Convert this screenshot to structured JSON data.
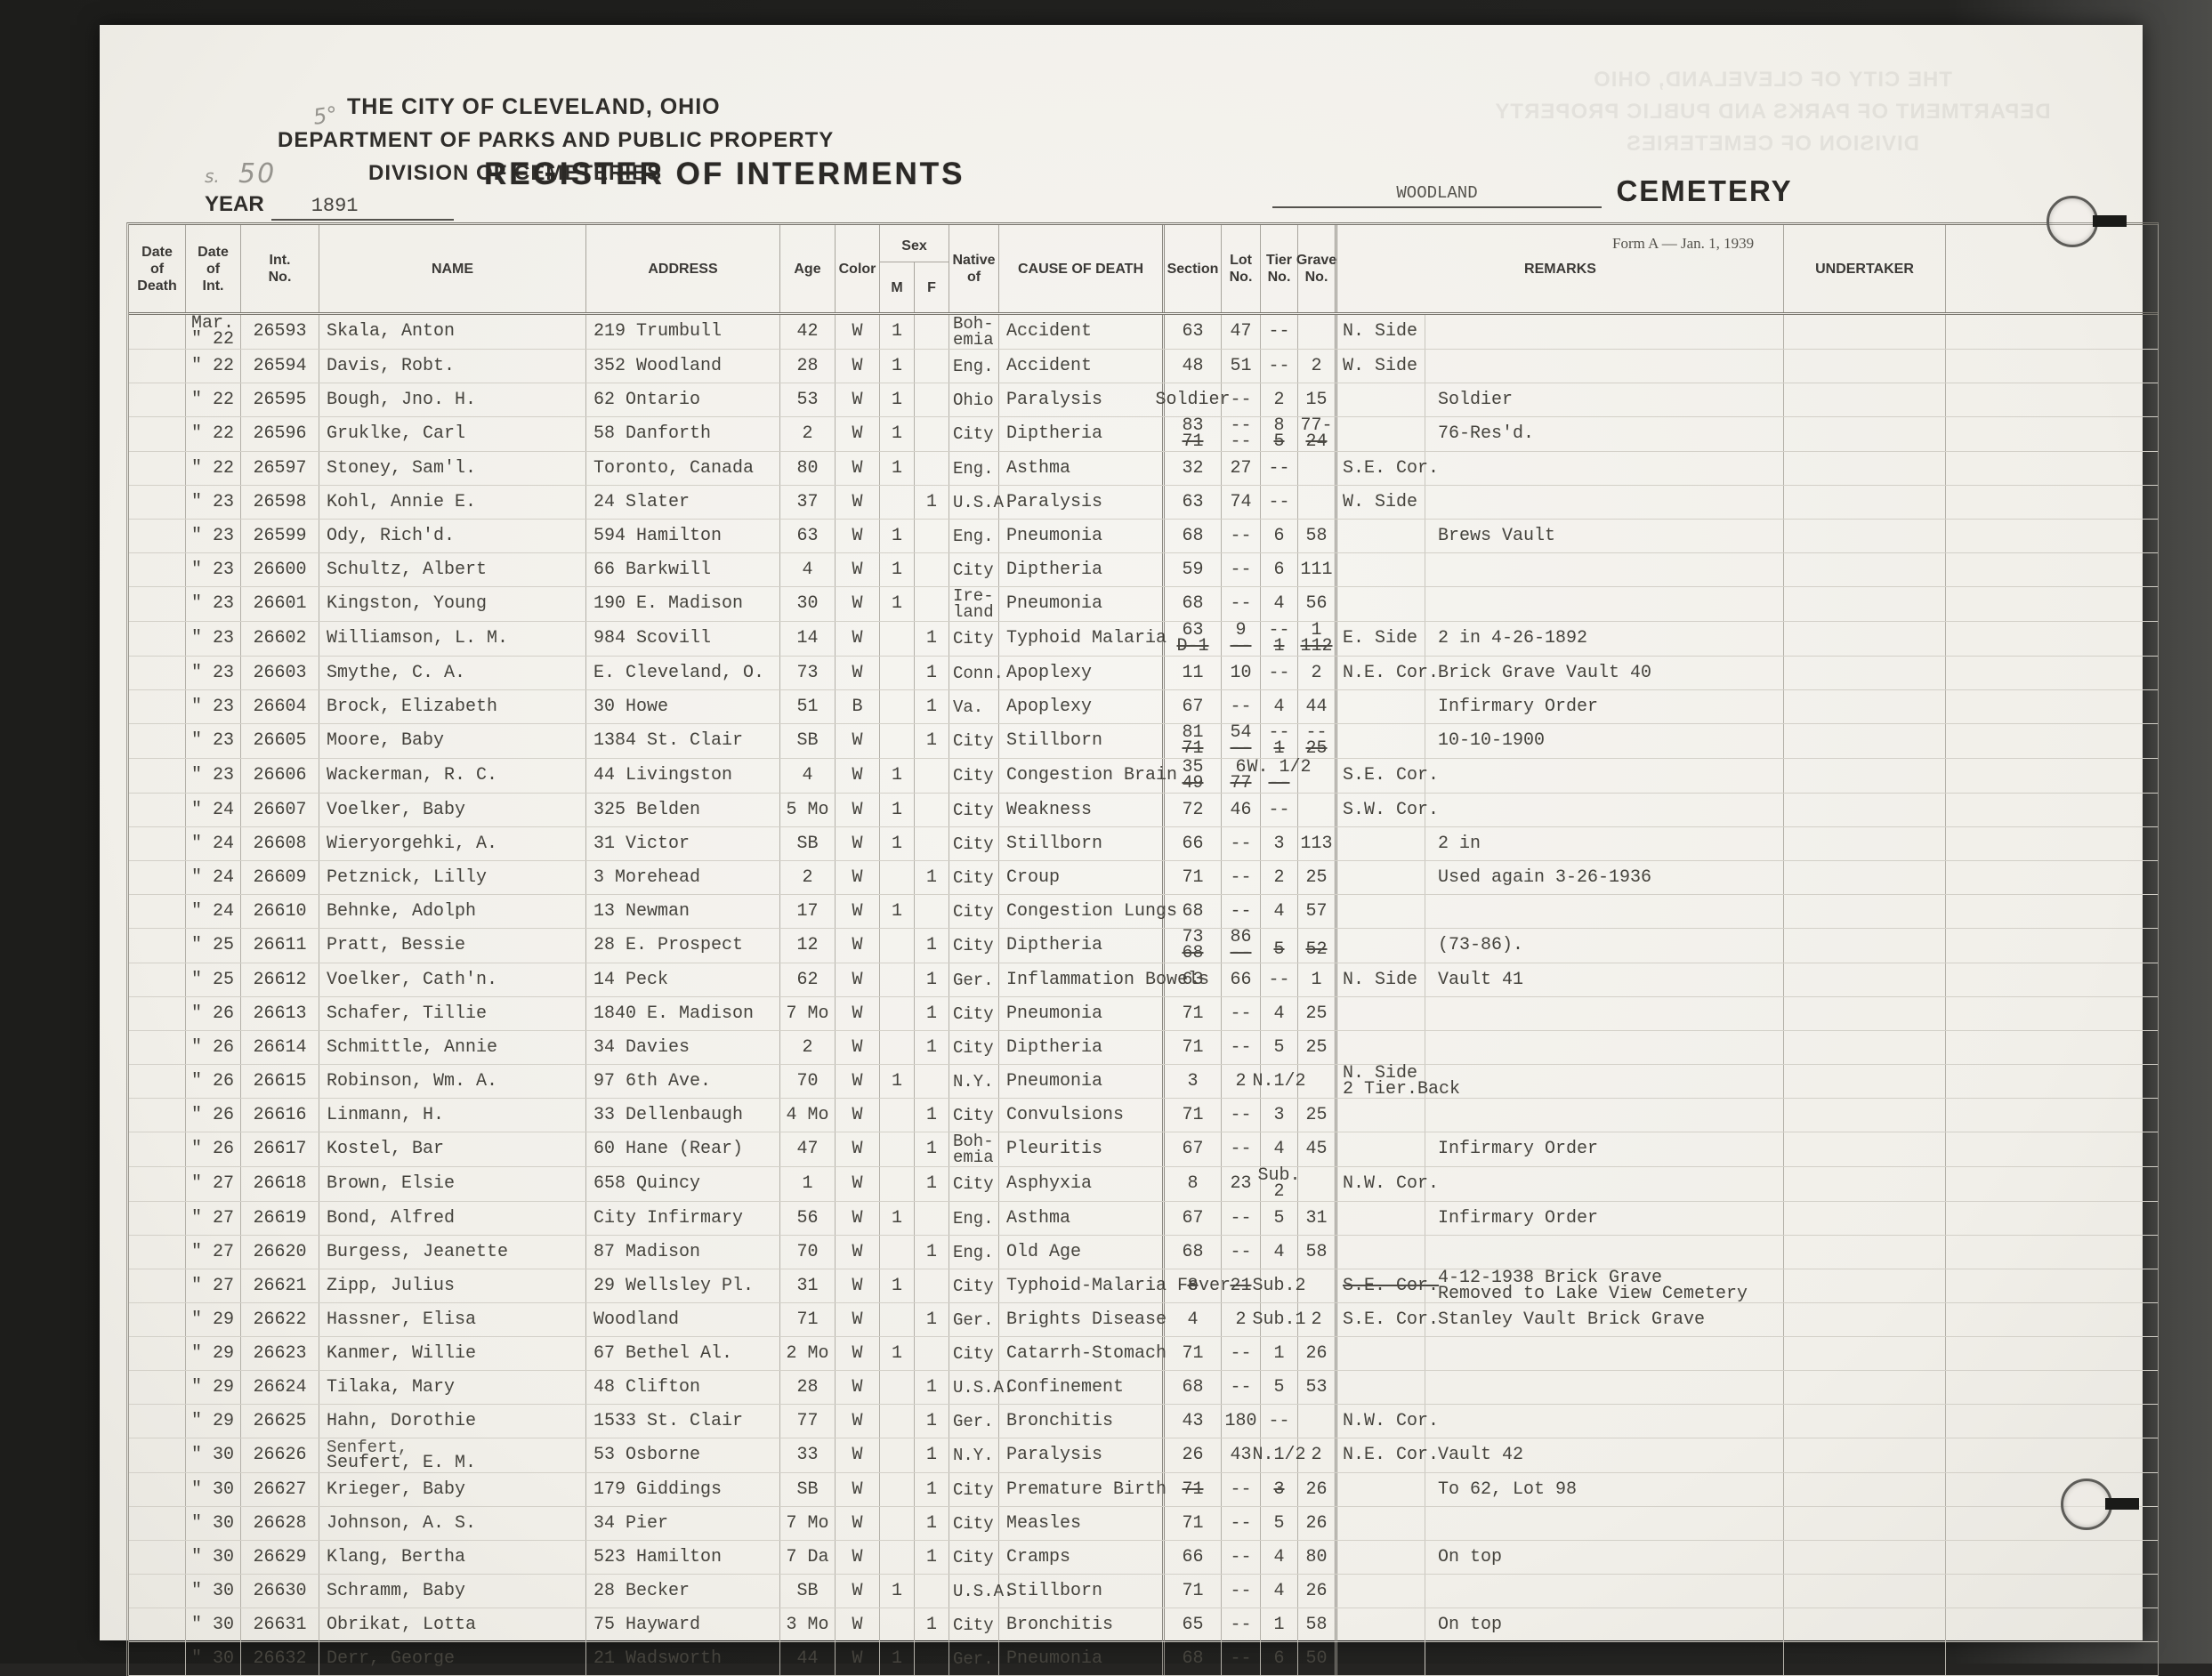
{
  "header": {
    "agency_line1": "THE CITY OF CLEVELAND, OHIO",
    "agency_line2": "DEPARTMENT OF PARKS AND PUBLIC PROPERTY",
    "agency_line3": "DIVISION OF CEMETERIES",
    "title": "REGISTER OF INTERMENTS",
    "year_label": "YEAR",
    "year_value": "1891",
    "cemetery_value": "WOODLAND",
    "cemetery_label": "CEMETERY",
    "form_note": "Form A — Jan. 1, 1939",
    "pencil_page_number": "50",
    "pencil_mark_small": "5°",
    "pencil_mark_left": "s."
  },
  "columns": {
    "date_death": [
      "Date",
      "of",
      "Death"
    ],
    "date_int": [
      "Date",
      "of",
      "Int."
    ],
    "int_no": [
      "Int.",
      "No."
    ],
    "name": "NAME",
    "address": "ADDRESS",
    "age": "Age",
    "color": "Color",
    "sex": "Sex",
    "sex_m": "M",
    "sex_f": "F",
    "native_of": [
      "Native",
      "of"
    ],
    "cause_of_death": "CAUSE OF DEATH",
    "section": "Section",
    "lot_no": [
      "Lot",
      "No."
    ],
    "tier_no": [
      "Tier",
      "No."
    ],
    "grave_no": [
      "Grave",
      "No."
    ],
    "remarks": "REMARKS",
    "undertaker": "UNDERTAKER"
  },
  "rows": [
    {
      "di": [
        "Mar.",
        "\" 22"
      ],
      "no": "26593",
      "name": "Skala, Anton",
      "addr": "219 Trumbull",
      "age": "42",
      "col": "W",
      "m": "1",
      "f": "",
      "nat": [
        "Boh-",
        "emia"
      ],
      "cause": "Accident",
      "sec": "63",
      "lot": "47",
      "tier": "--",
      "grv": "",
      "pos": "N. Side",
      "rem": ""
    },
    {
      "di": "\" 22",
      "no": "26594",
      "name": "Davis, Robt.",
      "addr": "352 Woodland",
      "age": "28",
      "col": "W",
      "m": "1",
      "f": "",
      "nat": "Eng.",
      "cause": "Accident",
      "sec": "48",
      "lot": "51",
      "tier": "--",
      "grv": "2",
      "pos": "W. Side",
      "rem": ""
    },
    {
      "di": "\" 22",
      "no": "26595",
      "name": "Bough, Jno. H.",
      "addr": "62 Ontario",
      "age": "53",
      "col": "W",
      "m": "1",
      "f": "",
      "nat": "Ohio",
      "cause": "Paralysis",
      "sec": "Soldier",
      "lot": "--",
      "tier": "2",
      "grv": "15",
      "pos": "",
      "rem": "Soldier"
    },
    {
      "di": "\" 22",
      "no": "26596",
      "name": "Gruklke, Carl",
      "addr": "58 Danforth",
      "age": "2",
      "col": "W",
      "m": "1",
      "f": "",
      "nat": "City",
      "cause": "Diptheria",
      "sec": [
        {
          "t": "83"
        },
        {
          "t": "71",
          "s": 1
        }
      ],
      "lot": [
        {
          "t": "--"
        },
        {
          "t": "--"
        }
      ],
      "tier": [
        {
          "t": "8"
        },
        {
          "t": "5",
          "s": 1
        }
      ],
      "grv": [
        {
          "t": "77-"
        },
        {
          "t": "24",
          "s": 1
        }
      ],
      "pos": "",
      "rem": "76-Res'd."
    },
    {
      "di": "\" 22",
      "no": "26597",
      "name": "Stoney, Sam'l.",
      "addr": "Toronto, Canada",
      "age": "80",
      "col": "W",
      "m": "1",
      "f": "",
      "nat": "Eng.",
      "cause": "Asthma",
      "sec": "32",
      "lot": "27",
      "tier": "--",
      "grv": "",
      "pos": "S.E. Cor.",
      "rem": ""
    },
    {
      "di": "\" 23",
      "no": "26598",
      "name": "Kohl, Annie E.",
      "addr": "24 Slater",
      "age": "37",
      "col": "W",
      "m": "",
      "f": "1",
      "nat": "U.S.A.",
      "cause": "Paralysis",
      "sec": "63",
      "lot": "74",
      "tier": "--",
      "grv": "",
      "pos": "W. Side",
      "rem": ""
    },
    {
      "di": "\" 23",
      "no": "26599",
      "name": "Ody, Rich'd.",
      "addr": "594 Hamilton",
      "age": "63",
      "col": "W",
      "m": "1",
      "f": "",
      "nat": "Eng.",
      "cause": "Pneumonia",
      "sec": "68",
      "lot": "--",
      "tier": "6",
      "grv": "58",
      "pos": "",
      "rem": "Brews Vault"
    },
    {
      "di": "\" 23",
      "no": "26600",
      "name": "Schultz, Albert",
      "addr": "66 Barkwill",
      "age": "4",
      "col": "W",
      "m": "1",
      "f": "",
      "nat": "City",
      "cause": "Diptheria",
      "sec": "59",
      "lot": "--",
      "tier": "6",
      "grv": "111",
      "pos": "",
      "rem": ""
    },
    {
      "di": "\" 23",
      "no": "26601",
      "name": "Kingston, Young",
      "addr": "190 E. Madison",
      "age": "30",
      "col": "W",
      "m": "1",
      "f": "",
      "nat": [
        "Ire-",
        "land"
      ],
      "cause": "Pneumonia",
      "sec": "68",
      "lot": "--",
      "tier": "4",
      "grv": "56",
      "pos": "",
      "rem": ""
    },
    {
      "di": "\" 23",
      "no": "26602",
      "name": "Williamson, L. M.",
      "addr": "984 Scovill",
      "age": "14",
      "col": "W",
      "m": "",
      "f": "1",
      "nat": "City",
      "cause": "Typhoid Malaria",
      "sec": [
        {
          "t": "63"
        },
        {
          "t": "D-1",
          "s": 1
        }
      ],
      "lot": [
        {
          "t": "9"
        },
        {
          "t": "--",
          "s": 1
        }
      ],
      "tier": [
        {
          "t": "--"
        },
        {
          "t": "1",
          "s": 1
        }
      ],
      "grv": [
        {
          "t": "1"
        },
        {
          "t": "112",
          "s": 1
        }
      ],
      "pos": "E. Side",
      "rem": "2 in  4-26-1892"
    },
    {
      "di": "\" 23",
      "no": "26603",
      "name": "Smythe, C. A.",
      "addr": "E. Cleveland, O.",
      "age": "73",
      "col": "W",
      "m": "",
      "f": "1",
      "nat": "Conn.",
      "cause": "Apoplexy",
      "sec": "11",
      "lot": "10",
      "tier": "--",
      "grv": "2",
      "pos": "N.E. Cor.",
      "rem": "Brick Grave  Vault 40"
    },
    {
      "di": "\" 23",
      "no": "26604",
      "name": "Brock, Elizabeth",
      "addr": "30 Howe",
      "age": "51",
      "col": "B",
      "m": "",
      "f": "1",
      "nat": "Va.",
      "cause": "Apoplexy",
      "sec": "67",
      "lot": "--",
      "tier": "4",
      "grv": "44",
      "pos": "",
      "rem": "Infirmary Order"
    },
    {
      "di": "\" 23",
      "no": "26605",
      "name": "Moore, Baby",
      "addr": "1384 St. Clair",
      "age": "SB",
      "col": "W",
      "m": "",
      "f": "1",
      "nat": "City",
      "cause": "Stillborn",
      "sec": [
        {
          "t": "81"
        },
        {
          "t": "71",
          "s": 1
        }
      ],
      "lot": [
        {
          "t": "54"
        },
        {
          "t": "--",
          "s": 1
        }
      ],
      "tier": [
        {
          "t": "--"
        },
        {
          "t": "1",
          "s": 1
        }
      ],
      "grv": [
        {
          "t": "--"
        },
        {
          "t": "25",
          "s": 1
        }
      ],
      "pos": "",
      "rem": "10-10-1900"
    },
    {
      "di": "\" 23",
      "no": "26606",
      "name": "Wackerman, R. C.",
      "addr": "44 Livingston",
      "age": "4",
      "col": "W",
      "m": "1",
      "f": "",
      "nat": "City",
      "cause": "Congestion Brain",
      "sec": [
        {
          "t": "35"
        },
        {
          "t": "49",
          "s": 1
        }
      ],
      "lot": [
        {
          "t": "6"
        },
        {
          "t": "77",
          "s": 1
        }
      ],
      "tier": [
        {
          "t": "W. 1/2"
        },
        {
          "t": "--",
          "s": 1
        }
      ],
      "grv": "",
      "pos": "S.E. Cor.",
      "rem": ""
    },
    {
      "di": "\" 24",
      "no": "26607",
      "name": "Voelker, Baby",
      "addr": "325 Belden",
      "age": "5 Mo",
      "col": "W",
      "m": "1",
      "f": "",
      "nat": "City",
      "cause": "Weakness",
      "sec": "72",
      "lot": "46",
      "tier": "--",
      "grv": "",
      "pos": "S.W. Cor.",
      "rem": ""
    },
    {
      "di": "\" 24",
      "no": "26608",
      "name": "Wieryorgehki, A.",
      "addr": "31 Victor",
      "age": "SB",
      "col": "W",
      "m": "1",
      "f": "",
      "nat": "City",
      "cause": "Stillborn",
      "sec": "66",
      "lot": "--",
      "tier": "3",
      "grv": "113",
      "pos": "",
      "rem": "2 in"
    },
    {
      "di": "\" 24",
      "no": "26609",
      "name": "Petznick, Lilly",
      "addr": "3 Morehead",
      "age": "2",
      "col": "W",
      "m": "",
      "f": "1",
      "nat": "City",
      "cause": "Croup",
      "sec": "71",
      "lot": "--",
      "tier": "2",
      "grv": "25",
      "pos": "",
      "rem": "Used again  3-26-1936"
    },
    {
      "di": "\" 24",
      "no": "26610",
      "name": "Behnke, Adolph",
      "addr": "13 Newman",
      "age": "17",
      "col": "W",
      "m": "1",
      "f": "",
      "nat": "City",
      "cause": "Congestion Lungs",
      "sec": "68",
      "lot": "--",
      "tier": "4",
      "grv": "57",
      "pos": "",
      "rem": ""
    },
    {
      "di": "\" 25",
      "no": "26611",
      "name": "Pratt, Bessie",
      "addr": "28 E. Prospect",
      "age": "12",
      "col": "W",
      "m": "",
      "f": "1",
      "nat": "City",
      "cause": "Diptheria",
      "sec": [
        {
          "t": "73"
        },
        {
          "t": "68",
          "s": 1
        }
      ],
      "lot": [
        {
          "t": "86"
        },
        {
          "t": "--",
          "s": 1
        }
      ],
      "tier": [
        {
          "t": ""
        },
        {
          "t": "5",
          "s": 1
        }
      ],
      "grv": [
        {
          "t": ""
        },
        {
          "t": "52",
          "s": 1
        }
      ],
      "pos": "",
      "rem": "(73-86)."
    },
    {
      "di": "\" 25",
      "no": "26612",
      "name": "Voelker, Cath'n.",
      "addr": "14 Peck",
      "age": "62",
      "col": "W",
      "m": "",
      "f": "1",
      "nat": "Ger.",
      "cause": "Inflammation Bowels",
      "sec": "63",
      "lot": "66",
      "tier": "--",
      "grv": "1",
      "pos": "N. Side",
      "rem": "Vault 41"
    },
    {
      "di": "\" 26",
      "no": "26613",
      "name": "Schafer, Tillie",
      "addr": "1840 E. Madison",
      "age": "7 Mo",
      "col": "W",
      "m": "",
      "f": "1",
      "nat": "City",
      "cause": "Pneumonia",
      "sec": "71",
      "lot": "--",
      "tier": "4",
      "grv": "25",
      "pos": "",
      "rem": ""
    },
    {
      "di": "\" 26",
      "no": "26614",
      "name": "Schmittle, Annie",
      "addr": "34 Davies",
      "age": "2",
      "col": "W",
      "m": "",
      "f": "1",
      "nat": "City",
      "cause": "Diptheria",
      "sec": "71",
      "lot": "--",
      "tier": "5",
      "grv": "25",
      "pos": "",
      "rem": ""
    },
    {
      "di": "\" 26",
      "no": "26615",
      "name": "Robinson, Wm. A.",
      "addr": "97  6th Ave.",
      "age": "70",
      "col": "W",
      "m": "1",
      "f": "",
      "nat": "N.Y.",
      "cause": "Pneumonia",
      "sec": "3",
      "lot": "2",
      "tier": "N.1/2",
      "grv": "",
      "pos": [
        "N. Side",
        "2 Tier.Back"
      ],
      "rem": ""
    },
    {
      "di": "\" 26",
      "no": "26616",
      "name": "Linmann, H.",
      "addr": "33 Dellenbaugh",
      "age": "4 Mo",
      "col": "W",
      "m": "",
      "f": "1",
      "nat": "City",
      "cause": "Convulsions",
      "sec": "71",
      "lot": "--",
      "tier": "3",
      "grv": "25",
      "pos": "",
      "rem": ""
    },
    {
      "di": "\" 26",
      "no": "26617",
      "name": "Kostel, Bar",
      "addr": "60 Hane (Rear)",
      "age": "47",
      "col": "W",
      "m": "",
      "f": "1",
      "nat": [
        "Boh-",
        "emia"
      ],
      "cause": "Pleuritis",
      "sec": "67",
      "lot": "--",
      "tier": "4",
      "grv": "45",
      "pos": "",
      "rem": "Infirmary Order"
    },
    {
      "di": "\" 27",
      "no": "26618",
      "name": "Brown, Elsie",
      "addr": "658 Quincy",
      "age": "1",
      "col": "W",
      "m": "",
      "f": "1",
      "nat": "City",
      "cause": "Asphyxia",
      "sec": "8",
      "lot": "23",
      "tier": [
        "Sub.",
        "2"
      ],
      "grv": "",
      "pos": "N.W. Cor.",
      "rem": ""
    },
    {
      "di": "\" 27",
      "no": "26619",
      "name": "Bond, Alfred",
      "addr": "City Infirmary",
      "age": "56",
      "col": "W",
      "m": "1",
      "f": "",
      "nat": "Eng.",
      "cause": "Asthma",
      "sec": "67",
      "lot": "--",
      "tier": "5",
      "grv": "31",
      "pos": "",
      "rem": "Infirmary Order"
    },
    {
      "di": "\" 27",
      "no": "26620",
      "name": "Burgess, Jeanette",
      "addr": "87 Madison",
      "age": "70",
      "col": "W",
      "m": "",
      "f": "1",
      "nat": "Eng.",
      "cause": "Old Age",
      "sec": "68",
      "lot": "--",
      "tier": "4",
      "grv": "58",
      "pos": "",
      "rem": ""
    },
    {
      "di": "\" 27",
      "no": "26621",
      "name": "Zipp, Julius",
      "addr": "29 Wellsley Pl.",
      "age": "31",
      "col": "W",
      "m": "1",
      "f": "",
      "nat": "City",
      "cause": "Typhoid-Malaria Fever",
      "sec": [
        {
          "t": "8",
          "s": 1
        }
      ],
      "lot": [
        {
          "t": "21",
          "s": 1
        }
      ],
      "tier": "Sub.2",
      "grv": "",
      "pos": [
        {
          "t": "S.E. Cor.",
          "s": 1
        }
      ],
      "rem": [
        "4-12-1938  Brick Grave",
        "Removed to Lake View Cemetery"
      ]
    },
    {
      "di": "\" 29",
      "no": "26622",
      "name": "Hassner, Elisa",
      "addr": "Woodland",
      "age": "71",
      "col": "W",
      "m": "",
      "f": "1",
      "nat": "Ger.",
      "cause": "Brights Disease",
      "sec": "4",
      "lot": "2",
      "tier": "Sub.1",
      "grv": "2",
      "pos": "S.E. Cor.",
      "rem": "Stanley Vault Brick Grave"
    },
    {
      "di": "\" 29",
      "no": "26623",
      "name": "Kanmer, Willie",
      "addr": "67 Bethel Al.",
      "age": "2 Mo",
      "col": "W",
      "m": "1",
      "f": "",
      "nat": "City",
      "cause": "Catarrh-Stomach",
      "sec": "71",
      "lot": "--",
      "tier": "1",
      "grv": "26",
      "pos": "",
      "rem": ""
    },
    {
      "di": "\" 29",
      "no": "26624",
      "name": "Tilaka, Mary",
      "addr": "48 Clifton",
      "age": "28",
      "col": "W",
      "m": "",
      "f": "1",
      "nat": "U.S.A.",
      "cause": "Confinement",
      "sec": "68",
      "lot": "--",
      "tier": "5",
      "grv": "53",
      "pos": "",
      "rem": ""
    },
    {
      "di": "\" 29",
      "no": "26625",
      "name": "Hahn, Dorothie",
      "addr": "1533 St. Clair",
      "age": "77",
      "col": "W",
      "m": "",
      "f": "1",
      "nat": "Ger.",
      "cause": "Bronchitis",
      "sec": "43",
      "lot": "180",
      "tier": "--",
      "grv": "",
      "pos": "N.W. Cor.",
      "rem": ""
    },
    {
      "di": "\" 30",
      "no": "26626",
      "name": "Seufert, E. M.",
      "name_above": "Senfert,",
      "addr": "53 Osborne",
      "age": "33",
      "col": "W",
      "m": "",
      "f": "1",
      "nat": "N.Y.",
      "cause": "Paralysis",
      "sec": "26",
      "lot": "43",
      "tier": "N.1/2",
      "grv": "2",
      "pos": "N.E. Cor.",
      "rem": "Vault 42"
    },
    {
      "di": "\" 30",
      "no": "26627",
      "name": "Krieger, Baby",
      "addr": "179 Giddings",
      "age": "SB",
      "col": "W",
      "m": "",
      "f": "1",
      "nat": "City",
      "cause": "Premature Birth",
      "sec": [
        {
          "t": "71",
          "s": 1
        }
      ],
      "lot": "--",
      "tier": [
        {
          "t": "3",
          "s": 1
        }
      ],
      "grv": "26",
      "pos": "",
      "rem": "To 62, Lot 98"
    },
    {
      "di": "\" 30",
      "no": "26628",
      "name": "Johnson, A. S.",
      "addr": "34 Pier",
      "age": "7 Mo",
      "col": "W",
      "m": "",
      "f": "1",
      "nat": "City",
      "cause": "Measles",
      "sec": "71",
      "lot": "--",
      "tier": "5",
      "grv": "26",
      "pos": "",
      "rem": ""
    },
    {
      "di": "\" 30",
      "no": "26629",
      "name": "Klang, Bertha",
      "addr": "523 Hamilton",
      "age": "7 Da",
      "col": "W",
      "m": "",
      "f": "1",
      "nat": "City",
      "cause": "Cramps",
      "sec": "66",
      "lot": "--",
      "tier": "4",
      "grv": "80",
      "pos": "",
      "rem": "On top"
    },
    {
      "di": "\" 30",
      "no": "26630",
      "name": "Schramm, Baby",
      "addr": "28 Becker",
      "age": "SB",
      "col": "W",
      "m": "1",
      "f": "",
      "nat": "U.S.A.",
      "cause": "Stillborn",
      "sec": "71",
      "lot": "--",
      "tier": "4",
      "grv": "26",
      "pos": "",
      "rem": ""
    },
    {
      "di": "\" 30",
      "no": "26631",
      "name": "Obrikat, Lotta",
      "addr": "75 Hayward",
      "age": "3 Mo",
      "col": "W",
      "m": "",
      "f": "1",
      "nat": "City",
      "cause": "Bronchitis",
      "sec": "65",
      "lot": "--",
      "tier": "1",
      "grv": "58",
      "pos": "",
      "rem": "On top"
    },
    {
      "di": "\" 30",
      "no": "26632",
      "name": "Derr, George",
      "addr": "21 Wadsworth",
      "age": "44",
      "col": "W",
      "m": "1",
      "f": "",
      "nat": "Ger.",
      "cause": "Pneumonia",
      "sec": "68",
      "lot": "--",
      "tier": "6",
      "grv": "50",
      "pos": "",
      "rem": ""
    }
  ]
}
